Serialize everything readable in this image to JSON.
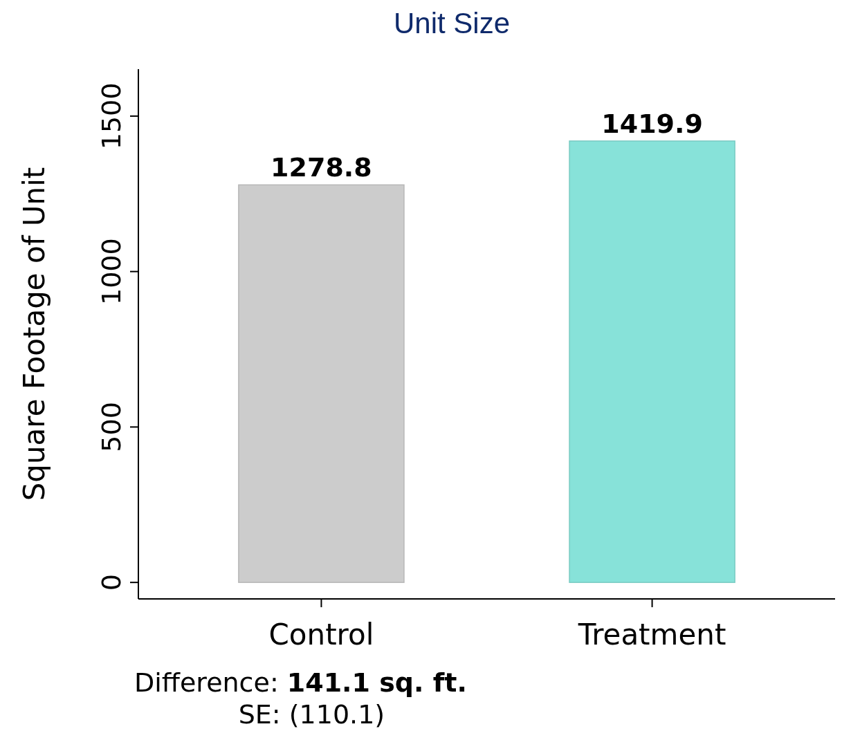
{
  "chart_data": {
    "type": "bar",
    "title": "Unit Size",
    "ylabel": "Square Footage of Unit",
    "categories": [
      "Control",
      "Treatment"
    ],
    "values": [
      1278.8,
      1419.9
    ],
    "colors": [
      "#cccccc",
      "#87e2d9"
    ],
    "ylim": [
      -53,
      1651
    ],
    "yticks": [
      0,
      500,
      1000,
      1500
    ],
    "data_labels": true,
    "grid": false,
    "annotations": [
      "Difference: 141.1 sq. ft.",
      "SE: (110.1)"
    ]
  }
}
